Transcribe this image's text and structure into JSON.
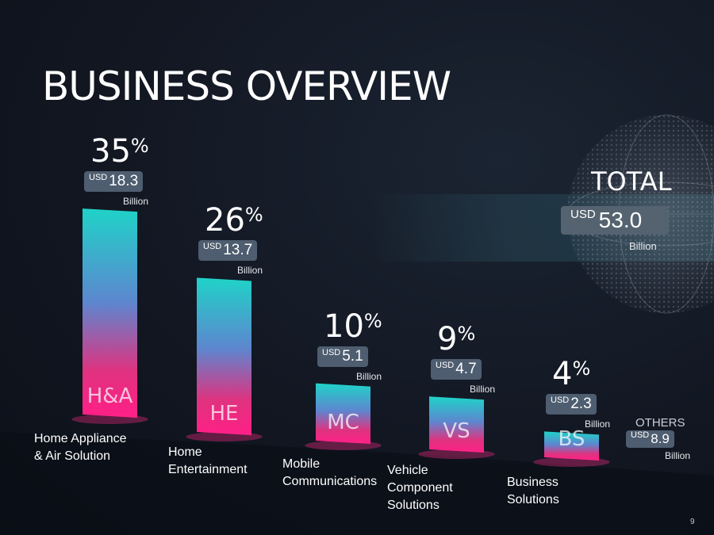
{
  "title": "BUSINESS OVERVIEW",
  "total": {
    "label": "TOTAL",
    "currency": "USD",
    "value": "53.0",
    "unit": "Billion"
  },
  "others": {
    "label": "OTHERS",
    "currency": "USD",
    "value": "8.9",
    "unit": "Billion"
  },
  "page_number": "9",
  "colors": {
    "bar_top": "#1fd3c8",
    "bar_mid": "#6a6bd0",
    "bar_bottom": "#ff1f87",
    "badge": "#4e5d6f"
  },
  "chart_data": {
    "type": "bar",
    "title": "BUSINESS OVERVIEW",
    "categories": [
      "H&A",
      "HE",
      "MC",
      "VS",
      "BS"
    ],
    "series": [
      {
        "name": "",
        "values": [
          18.3,
          13.7,
          5.1,
          4.7,
          2.3
        ]
      }
    ],
    "bars": [
      {
        "abbr": "H&A",
        "name": [
          "Home Appliance",
          "& Air Solution"
        ],
        "percent": "35",
        "currency": "USD",
        "value": "18.3",
        "unit": "Billion"
      },
      {
        "abbr": "HE",
        "name": [
          "Home",
          "Entertainment"
        ],
        "percent": "26",
        "currency": "USD",
        "value": "13.7",
        "unit": "Billion"
      },
      {
        "abbr": "MC",
        "name": [
          "Mobile",
          "Communications"
        ],
        "percent": "10",
        "currency": "USD",
        "value": "5.1",
        "unit": "Billion"
      },
      {
        "abbr": "VS",
        "name": [
          "Vehicle",
          "Component",
          "Solutions"
        ],
        "percent": "9",
        "currency": "USD",
        "value": "4.7",
        "unit": "Billion"
      },
      {
        "abbr": "BS",
        "name": [
          "Business",
          "Solutions"
        ],
        "percent": "4",
        "currency": "USD",
        "value": "2.3",
        "unit": "Billion"
      }
    ],
    "percent_sign": "%",
    "xlabel": "",
    "ylabel": "",
    "grid": false,
    "legend": "none"
  }
}
